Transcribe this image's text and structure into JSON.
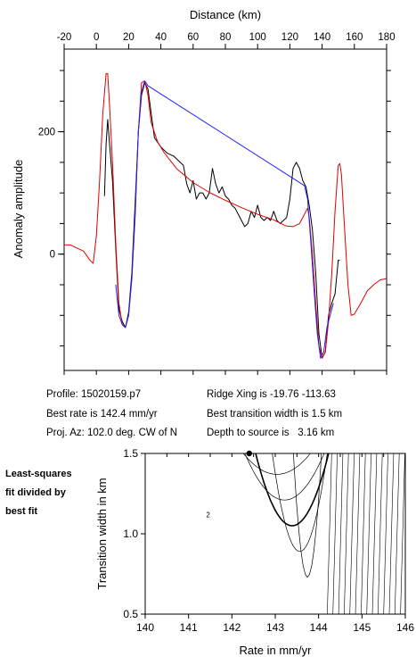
{
  "chart_data": [
    {
      "type": "line",
      "xlabel": "Distance (km)",
      "ylabel": "Anomaly amplitude",
      "xlim": [
        -20,
        180
      ],
      "ylim": [
        -190,
        335
      ],
      "x_ticks": [
        -20,
        0,
        20,
        40,
        60,
        80,
        100,
        120,
        140,
        160,
        180
      ],
      "y_ticks": [
        0,
        200
      ],
      "series": [
        {
          "color": "#000000",
          "points": [
            [
              5,
              95
            ],
            [
              6,
              180
            ],
            [
              7,
              220
            ],
            [
              8,
              185
            ],
            [
              10,
              120
            ],
            [
              12,
              10
            ],
            [
              14,
              -90
            ],
            [
              16,
              -110
            ],
            [
              18,
              -120
            ],
            [
              20,
              -95
            ],
            [
              22,
              -30
            ],
            [
              24,
              80
            ],
            [
              26,
              200
            ],
            [
              28,
              260
            ],
            [
              30,
              280
            ],
            [
              32,
              270
            ],
            [
              34,
              230
            ],
            [
              36,
              190
            ],
            [
              40,
              175
            ],
            [
              44,
              165
            ],
            [
              48,
              160
            ],
            [
              52,
              150
            ],
            [
              54,
              145
            ],
            [
              56,
              115
            ],
            [
              58,
              100
            ],
            [
              60,
              120
            ],
            [
              62,
              90
            ],
            [
              64,
              100
            ],
            [
              66,
              100
            ],
            [
              68,
              90
            ],
            [
              70,
              100
            ],
            [
              72,
              140
            ],
            [
              74,
              115
            ],
            [
              76,
              100
            ],
            [
              78,
              110
            ],
            [
              80,
              95
            ],
            [
              82,
              90
            ],
            [
              84,
              80
            ],
            [
              86,
              75
            ],
            [
              88,
              65
            ],
            [
              90,
              55
            ],
            [
              92,
              45
            ],
            [
              94,
              50
            ],
            [
              96,
              70
            ],
            [
              98,
              60
            ],
            [
              100,
              80
            ],
            [
              102,
              60
            ],
            [
              104,
              55
            ],
            [
              106,
              60
            ],
            [
              108,
              55
            ],
            [
              110,
              70
            ],
            [
              112,
              55
            ],
            [
              114,
              50
            ],
            [
              116,
              55
            ],
            [
              118,
              60
            ],
            [
              120,
              90
            ],
            [
              122,
              140
            ],
            [
              124,
              150
            ],
            [
              126,
              140
            ],
            [
              128,
              120
            ],
            [
              130,
              110
            ],
            [
              132,
              80
            ],
            [
              134,
              40
            ],
            [
              136,
              -30
            ],
            [
              138,
              -130
            ],
            [
              140,
              -170
            ],
            [
              142,
              -160
            ],
            [
              144,
              -100
            ],
            [
              146,
              -80
            ],
            [
              148,
              -65
            ],
            [
              150,
              -10
            ],
            [
              151,
              -10
            ]
          ]
        },
        {
          "color": "#2020ff",
          "points": [
            [
              12,
              -50
            ],
            [
              14,
              -100
            ],
            [
              16,
              -115
            ],
            [
              18,
              -120
            ],
            [
              20,
              -100
            ],
            [
              22,
              -40
            ],
            [
              24,
              60
            ],
            [
              26,
              200
            ],
            [
              28,
              265
            ],
            [
              30,
              283
            ],
            [
              32,
              275
            ],
            [
              129,
              112
            ],
            [
              131,
              90
            ],
            [
              133,
              20
            ],
            [
              135,
              -60
            ],
            [
              137,
              -130
            ],
            [
              139,
              -170
            ],
            [
              141,
              -160
            ],
            [
              143,
              -120
            ],
            [
              145,
              -100
            ],
            [
              147,
              -80
            ]
          ]
        },
        {
          "color": "#e00000",
          "points": [
            [
              -20,
              15
            ],
            [
              -16,
              15
            ],
            [
              -12,
              10
            ],
            [
              -8,
              5
            ],
            [
              -4,
              -10
            ],
            [
              -2,
              -15
            ],
            [
              0,
              30
            ],
            [
              2,
              120
            ],
            [
              4,
              230
            ],
            [
              6,
              295
            ],
            [
              7,
              295
            ],
            [
              8,
              250
            ],
            [
              10,
              150
            ],
            [
              12,
              20
            ],
            [
              14,
              -80
            ],
            [
              16,
              -115
            ],
            [
              18,
              -120
            ],
            [
              20,
              -100
            ],
            [
              22,
              -40
            ],
            [
              24,
              60
            ],
            [
              26,
              200
            ],
            [
              28,
              280
            ],
            [
              30,
              283
            ],
            [
              32,
              260
            ],
            [
              34,
              215
            ],
            [
              38,
              183
            ],
            [
              42,
              166
            ],
            [
              50,
              139
            ],
            [
              60,
              117
            ],
            [
              70,
              101
            ],
            [
              80,
              88
            ],
            [
              90,
              76
            ],
            [
              100,
              65
            ],
            [
              110,
              56
            ],
            [
              116,
              48
            ],
            [
              118,
              46
            ],
            [
              122,
              45
            ],
            [
              126,
              50
            ],
            [
              128,
              60
            ],
            [
              130,
              70
            ],
            [
              131,
              75
            ],
            [
              132,
              60
            ],
            [
              134,
              0
            ],
            [
              136,
              -80
            ],
            [
              138,
              -150
            ],
            [
              140,
              -170
            ],
            [
              142,
              -160
            ],
            [
              144,
              -110
            ],
            [
              146,
              -30
            ],
            [
              148,
              70
            ],
            [
              150,
              145
            ],
            [
              151,
              148
            ],
            [
              152,
              130
            ],
            [
              154,
              40
            ],
            [
              156,
              -50
            ],
            [
              158,
              -100
            ],
            [
              160,
              -98
            ],
            [
              164,
              -80
            ],
            [
              168,
              -60
            ],
            [
              172,
              -50
            ],
            [
              176,
              -42
            ],
            [
              180,
              -40
            ]
          ]
        }
      ]
    },
    {
      "type": "contour",
      "xlabel": "Rate in mm/yr",
      "ylabel": "Transition width in km",
      "xlim": [
        140,
        146
      ],
      "ylim": [
        0.5,
        1.5
      ],
      "x_ticks": [
        140,
        141,
        142,
        143,
        144,
        145,
        146
      ],
      "y_ticks": [
        0.5,
        1.0,
        1.5
      ],
      "best_fit_point": [
        142.4,
        1.5
      ],
      "contour_label": "2"
    }
  ],
  "info": {
    "profile": "Profile: 15020159.p7",
    "best_rate": "Best rate is 142.4 mm/yr",
    "proj_az": "Proj. Az: 102.0 deg. CW of N",
    "ridge_xing": "Ridge Xing is -19.76 -113.63",
    "best_transition": "Best transition width is 1.5 km",
    "depth": "Depth to source is   3.16 km"
  },
  "side_label": [
    "Least-squares",
    "fit divided by",
    "best fit"
  ]
}
